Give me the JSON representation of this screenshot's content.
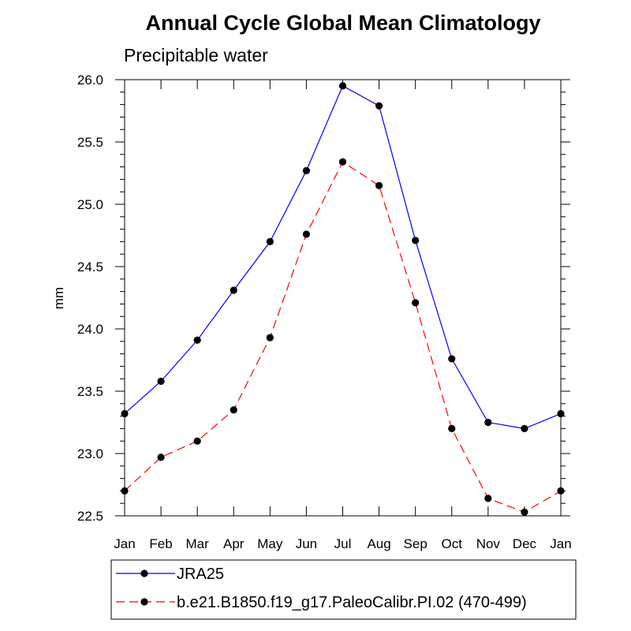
{
  "chart_data": {
    "type": "line",
    "title": "Annual Cycle Global Mean Climatology",
    "subtitle": "Precipitable water",
    "xlabel": "",
    "ylabel": "mm",
    "categories": [
      "Jan",
      "Feb",
      "Mar",
      "Apr",
      "May",
      "Jun",
      "Jul",
      "Aug",
      "Sep",
      "Oct",
      "Nov",
      "Dec",
      "Jan"
    ],
    "ylim": [
      22.5,
      26.0
    ],
    "yticks": [
      "22.5",
      "23.0",
      "23.5",
      "24.0",
      "24.5",
      "25.0",
      "25.5",
      "26.0"
    ],
    "series": [
      {
        "name": "JRA25",
        "color": "#0000ff",
        "dashed": false,
        "values": [
          23.32,
          23.58,
          23.91,
          24.31,
          24.7,
          25.27,
          25.95,
          25.79,
          24.71,
          23.76,
          23.25,
          23.2,
          23.32
        ]
      },
      {
        "name": "b.e21.B1850.f19_g17.PaleoCalibr.PI.02 (470-499)",
        "color": "#ff0000",
        "dashed": true,
        "values": [
          22.7,
          22.97,
          23.1,
          23.35,
          23.93,
          24.76,
          25.34,
          25.15,
          24.21,
          23.2,
          22.64,
          22.53,
          22.7
        ]
      }
    ]
  }
}
